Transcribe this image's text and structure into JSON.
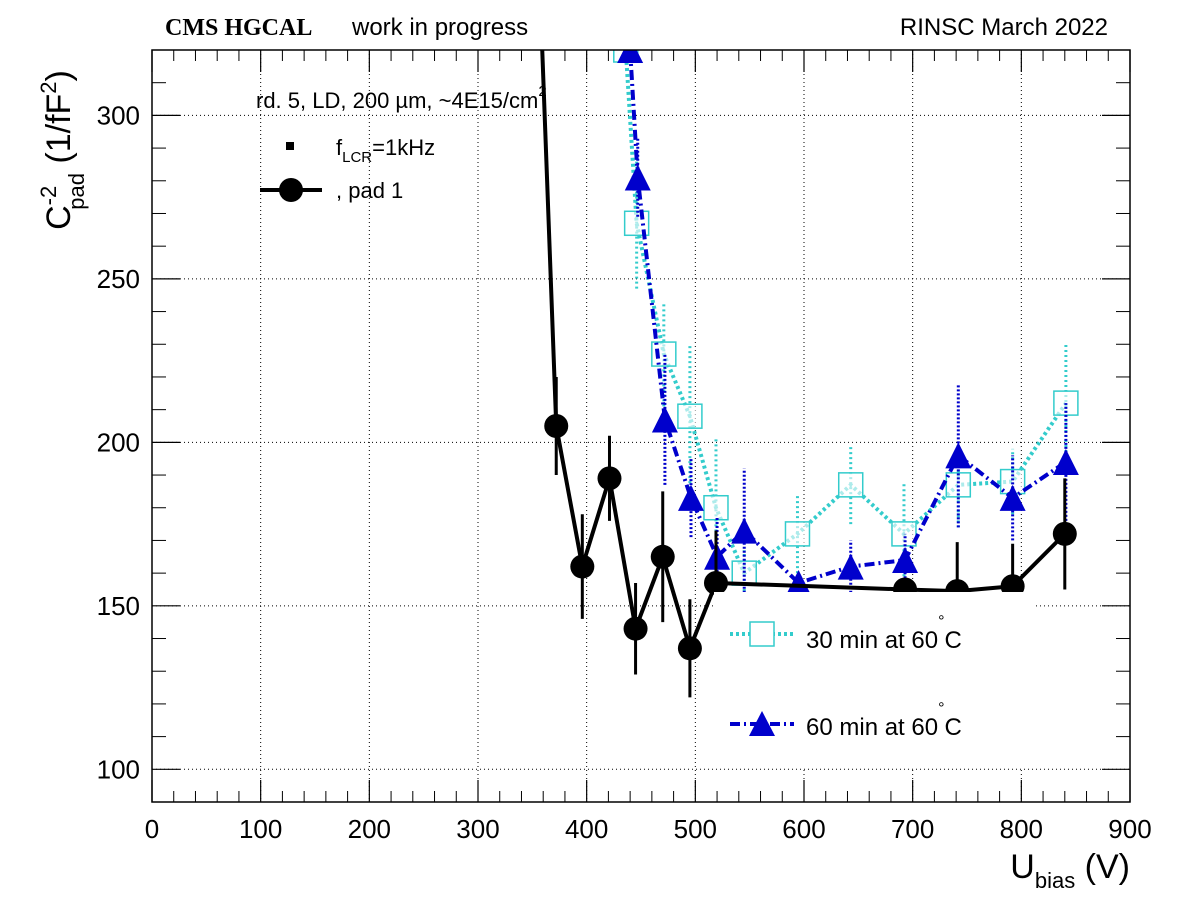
{
  "header": {
    "experiment": "CMS HGCAL",
    "status": "work in progress",
    "campaign": "RINSC March 2022"
  },
  "legend": {
    "condition": "rd. 5, LD, 200 µm, ~4E15/cm",
    "condition_sup": "2",
    "freq_prefix": "f",
    "freq_sub": "LCR",
    "freq_value": "=1kHz",
    "pad_label": ", pad 1",
    "series_30": "30 min at 60",
    "series_60": "60 min at 60",
    "deg_symbol": "°",
    "unit_c": "C"
  },
  "axes": {
    "y_main": "C",
    "y_sup": "-2",
    "y_sub": "pad",
    "y_unit_open": " (1/fF",
    "y_unit_sup": "2",
    "y_unit_close": ")",
    "x_main": "U",
    "x_sub": "bias",
    "x_unit": " (V)"
  },
  "colors": {
    "black": "#000000",
    "cyan": "#33cccc",
    "blue": "#0000cc",
    "grid": "#000000"
  },
  "chart_data": {
    "type": "line",
    "xlim": [
      0,
      900
    ],
    "ylim": [
      90,
      320
    ],
    "x_ticks": [
      0,
      100,
      200,
      300,
      400,
      500,
      600,
      700,
      800,
      900
    ],
    "y_ticks": [
      100,
      150,
      200,
      250,
      300
    ],
    "grid": true,
    "legend_position": "top-left and bottom-right",
    "series": [
      {
        "name": ", pad 1",
        "style": "black-circle-solid",
        "points": [
          {
            "x": 358,
            "y": 330,
            "err": 0
          },
          {
            "x": 372,
            "y": 205,
            "err": 15
          },
          {
            "x": 396,
            "y": 162,
            "err": 16
          },
          {
            "x": 421,
            "y": 189,
            "err": 13
          },
          {
            "x": 445,
            "y": 143,
            "err": 14
          },
          {
            "x": 470,
            "y": 165,
            "err": 20
          },
          {
            "x": 495,
            "y": 137,
            "err": 15
          },
          {
            "x": 519,
            "y": 157,
            "err": 16
          },
          {
            "x": 693,
            "y": 155,
            "err": 0
          },
          {
            "x": 741,
            "y": 154.5,
            "err": 15
          },
          {
            "x": 792,
            "y": 156,
            "err": 13
          },
          {
            "x": 840,
            "y": 172,
            "err": 17
          }
        ]
      },
      {
        "name": "30 min at 60°C",
        "style": "cyan-open-square-dotted",
        "points": [
          {
            "x": 436,
            "y": 320,
            "err": 0
          },
          {
            "x": 446,
            "y": 267,
            "err": 20
          },
          {
            "x": 471,
            "y": 227,
            "err": 16
          },
          {
            "x": 495,
            "y": 208,
            "err": 22
          },
          {
            "x": 519,
            "y": 180,
            "err": 21
          },
          {
            "x": 545,
            "y": 160,
            "err": 7
          },
          {
            "x": 594,
            "y": 172,
            "err": 12
          },
          {
            "x": 643,
            "y": 187,
            "err": 12
          },
          {
            "x": 692,
            "y": 172,
            "err": 16
          },
          {
            "x": 742,
            "y": 187,
            "err": 13
          },
          {
            "x": 792,
            "y": 188,
            "err": 10
          },
          {
            "x": 841,
            "y": 212,
            "err": 18
          }
        ]
      },
      {
        "name": "60 min at 60°C",
        "style": "blue-triangle-dashdot",
        "points": [
          {
            "x": 440,
            "y": 320,
            "err": 0
          },
          {
            "x": 447,
            "y": 281,
            "err": 12
          },
          {
            "x": 472,
            "y": 207,
            "err": 20
          },
          {
            "x": 496,
            "y": 183,
            "err": 12
          },
          {
            "x": 520,
            "y": 165,
            "err": 12
          },
          {
            "x": 545,
            "y": 173,
            "err": 19
          },
          {
            "x": 595,
            "y": 157,
            "err": 0
          },
          {
            "x": 643,
            "y": 162,
            "err": 8
          },
          {
            "x": 693,
            "y": 164,
            "err": 8
          },
          {
            "x": 742,
            "y": 196,
            "err": 22
          },
          {
            "x": 792,
            "y": 183,
            "err": 13
          },
          {
            "x": 841,
            "y": 194,
            "err": 18
          }
        ]
      }
    ]
  }
}
